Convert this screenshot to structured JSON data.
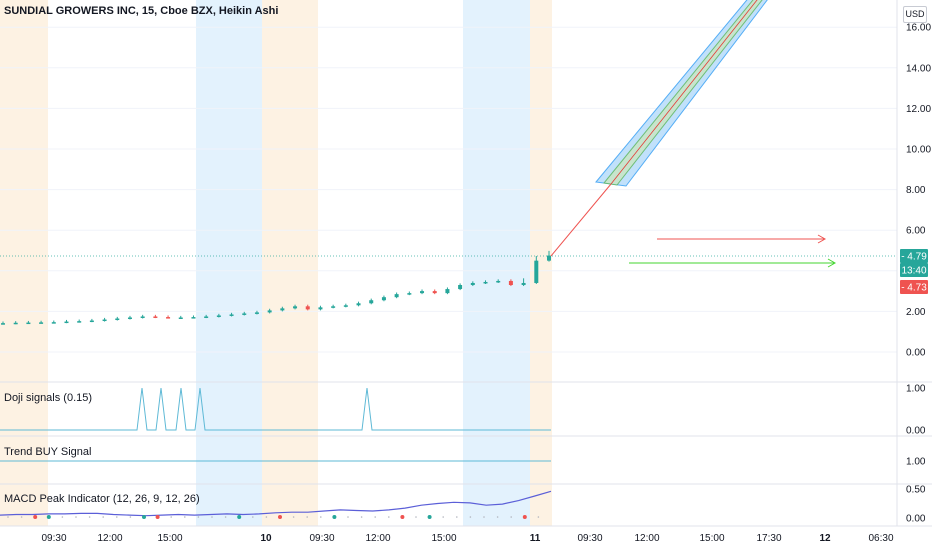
{
  "symbol_title": "SUNDIAL GROWERS INC, 15, Cboe BZX, Heikin Ashi",
  "currency": "USD",
  "price_tags": {
    "upper": "4.79",
    "countdown": "13:40",
    "lower": "4.73"
  },
  "colors": {
    "up": "#26a69a",
    "down": "#ef5350",
    "session_pre": "#fdf2e3",
    "session_post": "#e3f2fd",
    "indicator_line": "#5eb9d6",
    "macd_line": "#5b5fd8"
  },
  "chart_data": {
    "type": "candlestick",
    "x_tick_labels": [
      "09:30",
      "12:00",
      "15:00",
      "10",
      "09:30",
      "12:00",
      "15:00",
      "11",
      "09:30",
      "12:00",
      "15:00",
      "17:30",
      "12",
      "06:30"
    ],
    "y_ticks": [
      0,
      2,
      4,
      6,
      8,
      10,
      12,
      14,
      16
    ],
    "y_tick_labels": [
      "0.00",
      "2.00",
      "4.00",
      "6.00",
      "8.00",
      "10.00",
      "12.00",
      "14.00",
      "16.00"
    ],
    "ylim": [
      -0.5,
      17.5
    ],
    "close_series": [
      1.42,
      1.44,
      1.45,
      1.46,
      1.47,
      1.5,
      1.52,
      1.55,
      1.6,
      1.65,
      1.7,
      1.75,
      1.72,
      1.7,
      1.7,
      1.72,
      1.75,
      1.8,
      1.85,
      1.9,
      1.95,
      2.05,
      2.15,
      2.25,
      2.1,
      2.2,
      2.25,
      2.3,
      2.4,
      2.55,
      2.7,
      2.85,
      2.9,
      3.0,
      2.9,
      3.1,
      3.3,
      3.4,
      3.45,
      3.5,
      3.3,
      3.4,
      4.5,
      4.75
    ],
    "doji_signals": {
      "title": "Doji signals (0.15)",
      "y_tick_labels": [
        "0.00",
        "1.00"
      ],
      "spike_x_index": [
        8,
        9,
        10,
        11,
        21
      ],
      "ylim": [
        0,
        1
      ]
    },
    "trend_buy": {
      "title": "Trend BUY Signal",
      "y_tick_labels": [
        "1.00"
      ],
      "value": 1
    },
    "macd_peak": {
      "title": "MACD Peak Indicator (12, 26, 9, 12, 26)",
      "y_tick_labels": [
        "0.00",
        "0.50"
      ],
      "line": [
        0.05,
        0.06,
        0.06,
        0.07,
        0.07,
        0.08,
        0.08,
        0.06,
        0.05,
        0.04,
        0.05,
        0.06,
        0.05,
        0.06,
        0.07,
        0.06,
        0.07,
        0.09,
        0.1,
        0.1,
        0.12,
        0.14,
        0.13,
        0.12,
        0.14,
        0.17,
        0.22,
        0.25,
        0.27,
        0.26,
        0.22,
        0.24,
        0.3,
        0.38,
        0.46
      ],
      "ylim": [
        -0.05,
        0.55
      ]
    }
  }
}
